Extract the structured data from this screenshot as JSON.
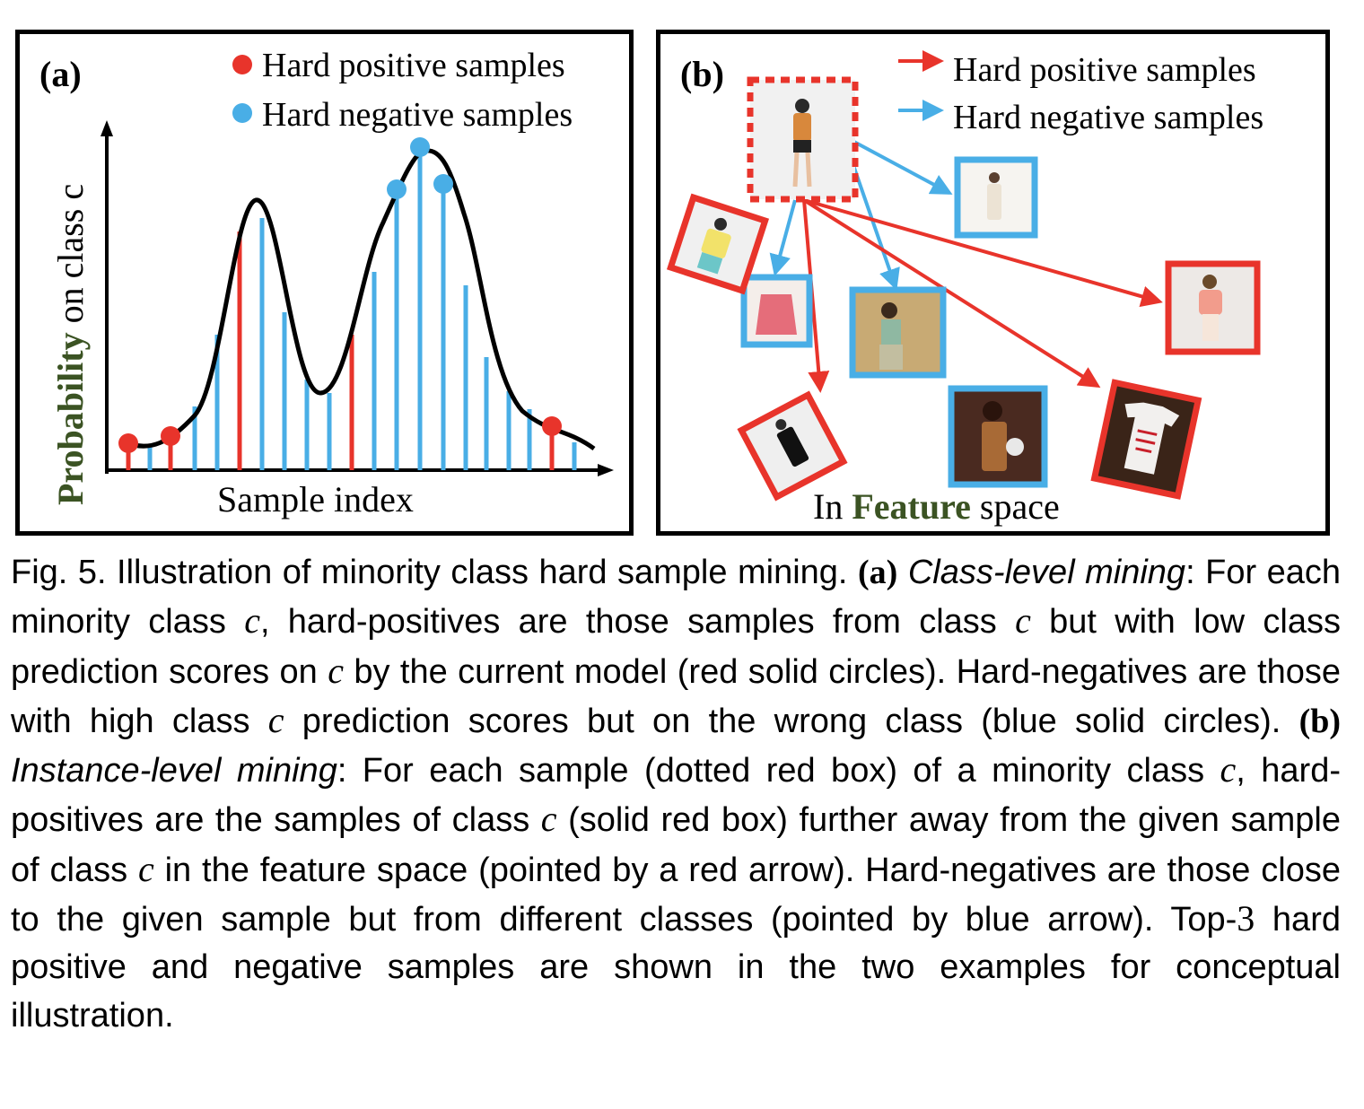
{
  "panel_a": {
    "tag": "(a)",
    "legend": [
      {
        "label": "Hard positive samples",
        "color": "#e8342b"
      },
      {
        "label": "Hard negative samples",
        "color": "#49aee6"
      }
    ],
    "ylabel_bold": "Probability",
    "ylabel_rest": " on class c",
    "xlabel": "Sample index"
  },
  "panel_b": {
    "tag": "(b)",
    "legend": [
      {
        "label": "Hard positive samples",
        "color": "#e8342b"
      },
      {
        "label": "Hard negative samples",
        "color": "#49aee6"
      }
    ],
    "bottom_pre": "In ",
    "bottom_bold": "Feature",
    "bottom_post": " space"
  },
  "caption": {
    "fig": "Fig. 5. Illustration of minority class hard sample mining.",
    "a_tag": "(a)",
    "a_title": "Class-level mining",
    "a_text1": ": For each minority class ",
    "var_c": "c",
    "a_text2": ", hard-positives are those samples from class ",
    "a_text3": " but with low class prediction scores on ",
    "a_text4": " by the current model (red solid circles). Hard-negatives are those with high class ",
    "a_text5": " prediction scores but on the wrong class (blue solid circles).",
    "b_tag": "(b)",
    "b_title": "Instance-level mining",
    "b_text1": ": For each sample (dotted red box) of a minority class ",
    "b_text2": ", hard-positives are the samples of class ",
    "b_text3": " (solid red box) further away from the given sample of class ",
    "b_text4": " in the feature space (pointed by a red arrow). Hard-negatives are those close to the given sample but from different classes (pointed by blue arrow). Top-",
    "num_3": "3",
    "b_text5": " hard positive and negative samples are shown in the two examples for conceptual illustration."
  },
  "colors": {
    "red": "#e8342b",
    "blue": "#49aee6",
    "green": "#3b5323"
  }
}
